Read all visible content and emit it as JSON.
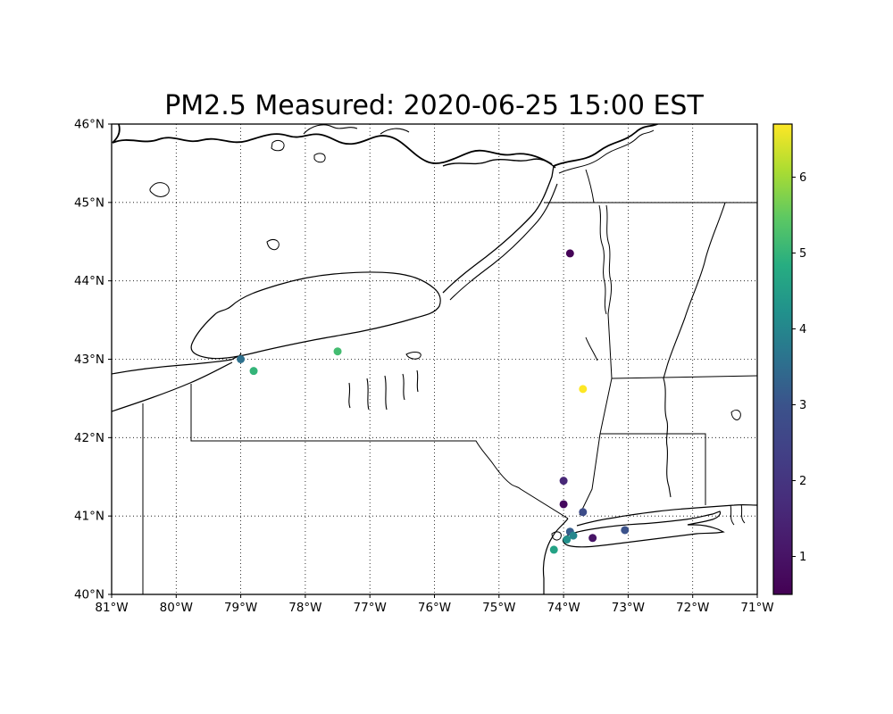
{
  "figure": {
    "background": "#ffffff",
    "frame_color": "#000000"
  },
  "chart_data": {
    "type": "scatter",
    "title": "PM2.5 Measured: 2020-06-25 15:00 EST",
    "projection": "geographic lon/lat map of New York / Lake Ontario region",
    "grid": "dotted",
    "legend_position": "colorbar-right",
    "x_axis": {
      "range": [
        -81,
        -71
      ],
      "values": [
        -81,
        -80,
        -79,
        -78,
        -77,
        -76,
        -75,
        -74,
        -73,
        -72,
        -71
      ],
      "ticks": [
        "81°W",
        "80°W",
        "79°W",
        "78°W",
        "77°W",
        "76°W",
        "75°W",
        "74°W",
        "73°W",
        "72°W",
        "71°W"
      ]
    },
    "y_axis": {
      "range": [
        40,
        46
      ],
      "values": [
        40,
        41,
        42,
        43,
        44,
        45,
        46
      ],
      "ticks": [
        "40°N",
        "41°N",
        "42°N",
        "43°N",
        "44°N",
        "45°N",
        "46°N"
      ]
    },
    "colorbar": {
      "colormap": "viridis",
      "vmin": 0.5,
      "vmax": 6.7,
      "ticks": [
        1,
        2,
        3,
        4,
        5,
        6
      ],
      "tick_labels": [
        "1",
        "2",
        "3",
        "4",
        "5",
        "6"
      ],
      "stops_bottom_to_top": [
        "#440154",
        "#48186a",
        "#472d7b",
        "#424086",
        "#3b528b",
        "#2c728e",
        "#21918c",
        "#27ad81",
        "#5cc863",
        "#aadc32",
        "#fde725"
      ]
    },
    "points": [
      {
        "lon": -73.9,
        "lat": 44.35,
        "value": 0.7,
        "color": "#450457"
      },
      {
        "lon": -77.5,
        "lat": 43.1,
        "value": 5.2,
        "color": "#44bc71"
      },
      {
        "lon": -79.0,
        "lat": 43.0,
        "value": 3.5,
        "color": "#2e718e"
      },
      {
        "lon": -78.8,
        "lat": 42.85,
        "value": 5.0,
        "color": "#34b479"
      },
      {
        "lon": -73.7,
        "lat": 42.62,
        "value": 6.7,
        "color": "#fde725"
      },
      {
        "lon": -74.0,
        "lat": 41.45,
        "value": 1.6,
        "color": "#482877"
      },
      {
        "lon": -74.0,
        "lat": 41.15,
        "value": 0.8,
        "color": "#45075e"
      },
      {
        "lon": -73.7,
        "lat": 41.05,
        "value": 2.8,
        "color": "#3d4c89"
      },
      {
        "lon": -73.05,
        "lat": 40.82,
        "value": 3.0,
        "color": "#3b528b"
      },
      {
        "lon": -73.55,
        "lat": 40.72,
        "value": 1.0,
        "color": "#471466"
      },
      {
        "lon": -73.9,
        "lat": 40.8,
        "value": 3.2,
        "color": "#365d8c"
      },
      {
        "lon": -73.85,
        "lat": 40.75,
        "value": 4.0,
        "color": "#25868d"
      },
      {
        "lon": -73.95,
        "lat": 40.7,
        "value": 4.3,
        "color": "#22908b"
      },
      {
        "lon": -74.15,
        "lat": 40.57,
        "value": 4.6,
        "color": "#24a285"
      }
    ]
  }
}
